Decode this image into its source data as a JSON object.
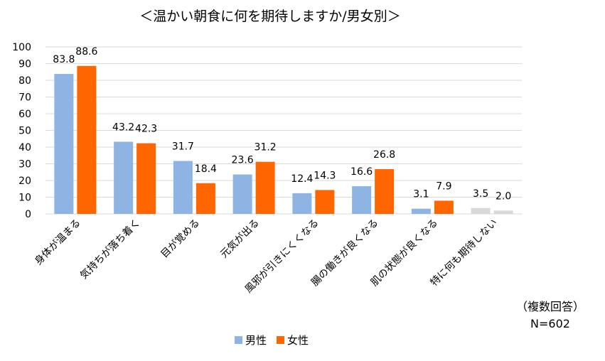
{
  "chart_data": {
    "type": "bar",
    "title": "＜温かい朝食に何を期待しますか/男女別＞",
    "categories": [
      "身体が温まる",
      "気持ちが落ち着く",
      "目が覚める",
      "元気が出る",
      "風邪が引きにくくなる",
      "腸の働きが良くなる",
      "肌の状態が良くなる",
      "特に何も期待しない"
    ],
    "series": [
      {
        "name": "男性",
        "values": [
          83.8,
          43.2,
          31.7,
          23.6,
          12.4,
          16.6,
          3.1,
          3.5
        ],
        "value_labels": [
          "83.8",
          "43.2",
          "31.7",
          "23.6",
          "12.4",
          "16.6",
          "3.1",
          "3.5"
        ],
        "color": "#8eb4e3",
        "last_color": "#d9d9d9"
      },
      {
        "name": "女性",
        "values": [
          88.6,
          42.3,
          18.4,
          31.2,
          14.3,
          26.8,
          7.9,
          2.0
        ],
        "value_labels": [
          "88.6",
          "42.3",
          "18.4",
          "31.2",
          "14.3",
          "26.8",
          "7.9",
          "2.0"
        ],
        "color": "#ff6600",
        "last_color": "#d9d9d9"
      }
    ],
    "ylim": [
      0,
      100
    ],
    "yticks": [
      "0",
      "10",
      "20",
      "30",
      "40",
      "50",
      "60",
      "70",
      "80",
      "90",
      "100"
    ],
    "grid": true,
    "legend": "bottom",
    "xlabel": "",
    "ylabel": ""
  },
  "notes": {
    "multiple_answers": "（複数回答）",
    "sample_size": "N=602"
  }
}
